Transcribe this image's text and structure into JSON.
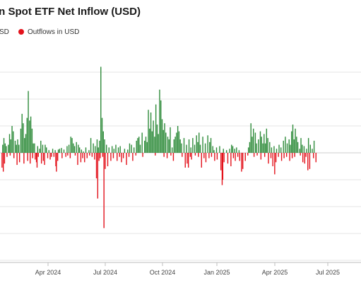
{
  "chart_data": {
    "type": "bar",
    "title": "in Spot ETF Net Inflow (USD)",
    "legend": {
      "placement": "top-left",
      "items": [
        {
          "label": "SD",
          "color": "#2e8b3a"
        },
        {
          "label": "Outflows in USD",
          "color": "#e3121b"
        }
      ]
    },
    "x_ticks": [
      "Apr 2024",
      "Jul 2024",
      "Oct 2024",
      "Jan 2025",
      "Apr 2025",
      "Jul 2025"
    ],
    "xlabel": "",
    "ylabel": "",
    "grid": true,
    "y_units": "relative (y-axis tick labels not visible)",
    "ylim": [
      -4.0,
      4.0
    ],
    "x_range_days": [
      0,
      575
    ],
    "inflow_color": "#2e8b3a",
    "outflow_color": "#e3121b",
    "series": [
      {
        "name": "Inflows",
        "points": [
          [
            2,
            0.3
          ],
          [
            4,
            0.55
          ],
          [
            6,
            0.35
          ],
          [
            8,
            0.25
          ],
          [
            11,
            0.3
          ],
          [
            13,
            0.7
          ],
          [
            15,
            0.5
          ],
          [
            17,
            1.0
          ],
          [
            19,
            0.8
          ],
          [
            22,
            0.45
          ],
          [
            24,
            0.3
          ],
          [
            26,
            0.5
          ],
          [
            28,
            0.3
          ],
          [
            31,
            0.9
          ],
          [
            33,
            1.45
          ],
          [
            35,
            1.1
          ],
          [
            37,
            0.55
          ],
          [
            39,
            0.7
          ],
          [
            41,
            1.3
          ],
          [
            43,
            2.3
          ],
          [
            45,
            1.2
          ],
          [
            47,
            1.35
          ],
          [
            49,
            0.9
          ],
          [
            51,
            0.35
          ],
          [
            53,
            0.35
          ],
          [
            58,
            0.25
          ],
          [
            61,
            0.15
          ],
          [
            63,
            0.45
          ],
          [
            66,
            0.3
          ],
          [
            70,
            0.3
          ],
          [
            72,
            0.2
          ],
          [
            76,
            0.1
          ],
          [
            82,
            0.15
          ],
          [
            86,
            0.1
          ],
          [
            91,
            0.12
          ],
          [
            93,
            0.15
          ],
          [
            96,
            0.18
          ],
          [
            100,
            0.12
          ],
          [
            105,
            0.25
          ],
          [
            108,
            0.3
          ],
          [
            111,
            0.6
          ],
          [
            113,
            0.55
          ],
          [
            115,
            0.35
          ],
          [
            117,
            0.25
          ],
          [
            120,
            0.4
          ],
          [
            123,
            0.3
          ],
          [
            125,
            0.2
          ],
          [
            128,
            0.12
          ],
          [
            131,
            0.05
          ],
          [
            135,
            0.2
          ],
          [
            140,
            0.1
          ],
          [
            143,
            0.55
          ],
          [
            147,
            0.35
          ],
          [
            150,
            0.25
          ],
          [
            153,
            0.5
          ],
          [
            155,
            0.2
          ],
          [
            157,
            0.45
          ],
          [
            159,
            3.2
          ],
          [
            161,
            1.3
          ],
          [
            163,
            0.8
          ],
          [
            165,
            0.5
          ],
          [
            168,
            0.3
          ],
          [
            172,
            0.2
          ],
          [
            177,
            0.25
          ],
          [
            180,
            0.15
          ],
          [
            183,
            0.3
          ],
          [
            187,
            0.2
          ],
          [
            190,
            0.25
          ],
          [
            197,
            0.15
          ],
          [
            202,
            0.12
          ],
          [
            205,
            0.35
          ],
          [
            208,
            0.3
          ],
          [
            212,
            0.2
          ],
          [
            216,
            0.45
          ],
          [
            218,
            0.55
          ],
          [
            220,
            0.6
          ],
          [
            222,
            0.3
          ],
          [
            225,
            0.75
          ],
          [
            229,
            0.45
          ],
          [
            231,
            0.6
          ],
          [
            233,
            0.4
          ],
          [
            235,
            1.6
          ],
          [
            237,
            0.9
          ],
          [
            239,
            1.5
          ],
          [
            241,
            0.8
          ],
          [
            243,
            1.2
          ],
          [
            245,
            0.6
          ],
          [
            247,
            1.8
          ],
          [
            249,
            1.05
          ],
          [
            251,
            0.7
          ],
          [
            253,
            2.35
          ],
          [
            255,
            1.95
          ],
          [
            257,
            1.25
          ],
          [
            259,
            0.85
          ],
          [
            261,
            1.1
          ],
          [
            263,
            0.75
          ],
          [
            266,
            0.6
          ],
          [
            268,
            0.5
          ],
          [
            270,
            0.95
          ],
          [
            273,
            0.2
          ],
          [
            276,
            0.5
          ],
          [
            278,
            0.6
          ],
          [
            280,
            0.75
          ],
          [
            282,
            1.0
          ],
          [
            284,
            0.8
          ],
          [
            286,
            0.5
          ],
          [
            288,
            0.35
          ],
          [
            292,
            0.55
          ],
          [
            296,
            0.3
          ],
          [
            300,
            0.5
          ],
          [
            303,
            0.2
          ],
          [
            306,
            0.55
          ],
          [
            309,
            0.3
          ],
          [
            312,
            0.65
          ],
          [
            314,
            0.4
          ],
          [
            316,
            0.75
          ],
          [
            318,
            0.3
          ],
          [
            322,
            0.6
          ],
          [
            326,
            0.35
          ],
          [
            330,
            0.65
          ],
          [
            333,
            0.4
          ],
          [
            335,
            0.55
          ],
          [
            338,
            0.25
          ],
          [
            340,
            0.1
          ],
          [
            344,
            0.2
          ],
          [
            349,
            0.25
          ],
          [
            355,
            0.15
          ],
          [
            360,
            0.1
          ],
          [
            365,
            0.15
          ],
          [
            368,
            0.3
          ],
          [
            370,
            0.25
          ],
          [
            373,
            0.15
          ],
          [
            376,
            0.2
          ],
          [
            380,
            0.1
          ],
          [
            395,
            0.2
          ],
          [
            397,
            0.4
          ],
          [
            399,
            1.1
          ],
          [
            401,
            0.6
          ],
          [
            403,
            0.9
          ],
          [
            406,
            0.75
          ],
          [
            408,
            0.35
          ],
          [
            411,
            0.5
          ],
          [
            414,
            0.8
          ],
          [
            416,
            0.6
          ],
          [
            418,
            0.35
          ],
          [
            420,
            0.7
          ],
          [
            422,
            0.35
          ],
          [
            424,
            0.9
          ],
          [
            426,
            0.55
          ],
          [
            429,
            0.4
          ],
          [
            432,
            0.2
          ],
          [
            436,
            0.25
          ],
          [
            440,
            0.15
          ],
          [
            444,
            0.3
          ],
          [
            447,
            0.2
          ],
          [
            451,
            0.45
          ],
          [
            454,
            0.6
          ],
          [
            457,
            0.35
          ],
          [
            460,
            0.5
          ],
          [
            462,
            0.3
          ],
          [
            464,
            0.8
          ],
          [
            466,
            1.05
          ],
          [
            468,
            0.5
          ],
          [
            470,
            0.9
          ],
          [
            472,
            0.6
          ],
          [
            474,
            0.4
          ],
          [
            477,
            0.15
          ],
          [
            479,
            0.55
          ],
          [
            481,
            0.3
          ],
          [
            484,
            0.25
          ],
          [
            488,
            0.15
          ],
          [
            491,
            0.55
          ],
          [
            494,
            0.3
          ],
          [
            497,
            0.15
          ],
          [
            500,
            0.45
          ]
        ]
      },
      {
        "name": "Outflows",
        "points": [
          [
            1,
            -0.55
          ],
          [
            3,
            -0.7
          ],
          [
            5,
            -0.4
          ],
          [
            9,
            -0.15
          ],
          [
            14,
            -0.1
          ],
          [
            20,
            -0.2
          ],
          [
            25,
            -0.45
          ],
          [
            29,
            -0.35
          ],
          [
            36,
            -0.4
          ],
          [
            42,
            -0.3
          ],
          [
            46,
            -0.4
          ],
          [
            50,
            -0.2
          ],
          [
            54,
            -0.25
          ],
          [
            56,
            -0.35
          ],
          [
            57,
            -0.55
          ],
          [
            59,
            -0.15
          ],
          [
            64,
            -0.4
          ],
          [
            67,
            -0.3
          ],
          [
            69,
            -0.45
          ],
          [
            74,
            -0.2
          ],
          [
            78,
            -0.25
          ],
          [
            80,
            -0.15
          ],
          [
            84,
            -0.15
          ],
          [
            87,
            -0.5
          ],
          [
            88,
            -0.7
          ],
          [
            90,
            -0.3
          ],
          [
            97,
            -0.2
          ],
          [
            103,
            -0.15
          ],
          [
            106,
            -0.1
          ],
          [
            110,
            -0.2
          ],
          [
            118,
            -0.1
          ],
          [
            122,
            -0.45
          ],
          [
            127,
            -0.35
          ],
          [
            130,
            -0.2
          ],
          [
            133,
            -0.35
          ],
          [
            137,
            -0.2
          ],
          [
            141,
            -0.1
          ],
          [
            145,
            -0.15
          ],
          [
            149,
            -0.25
          ],
          [
            152,
            -0.95
          ],
          [
            154,
            -1.7
          ],
          [
            156,
            -0.3
          ],
          [
            158,
            -0.2
          ],
          [
            162,
            -0.15
          ],
          [
            164,
            -2.8
          ],
          [
            166,
            -0.6
          ],
          [
            170,
            -0.5
          ],
          [
            175,
            -0.3
          ],
          [
            179,
            -0.2
          ],
          [
            185,
            -0.3
          ],
          [
            189,
            -0.15
          ],
          [
            192,
            -0.35
          ],
          [
            195,
            -0.2
          ],
          [
            200,
            -0.45
          ],
          [
            204,
            -0.15
          ],
          [
            210,
            -0.3
          ],
          [
            215,
            -0.1
          ],
          [
            226,
            -0.15
          ],
          [
            246,
            -0.1
          ],
          [
            260,
            -0.15
          ],
          [
            265,
            -0.2
          ],
          [
            271,
            -0.1
          ],
          [
            275,
            -0.3
          ],
          [
            289,
            -0.15
          ],
          [
            294,
            -0.55
          ],
          [
            297,
            -0.4
          ],
          [
            299,
            -0.55
          ],
          [
            302,
            -0.15
          ],
          [
            304,
            -0.25
          ],
          [
            310,
            -0.1
          ],
          [
            315,
            -0.15
          ],
          [
            320,
            -0.55
          ],
          [
            324,
            -0.2
          ],
          [
            327,
            -0.35
          ],
          [
            332,
            -0.2
          ],
          [
            336,
            -0.15
          ],
          [
            341,
            -0.3
          ],
          [
            345,
            -0.25
          ],
          [
            351,
            -0.65
          ],
          [
            353,
            -1.2
          ],
          [
            354,
            -1.0
          ],
          [
            356,
            -0.35
          ],
          [
            362,
            -0.4
          ],
          [
            367,
            -0.5
          ],
          [
            371,
            -0.2
          ],
          [
            374,
            -0.3
          ],
          [
            378,
            -0.15
          ],
          [
            381,
            -0.3
          ],
          [
            384,
            -0.7
          ],
          [
            386,
            -0.6
          ],
          [
            390,
            -0.3
          ],
          [
            394,
            -0.1
          ],
          [
            404,
            -0.15
          ],
          [
            409,
            -0.1
          ],
          [
            415,
            -0.25
          ],
          [
            421,
            -0.15
          ],
          [
            427,
            -0.4
          ],
          [
            431,
            -0.2
          ],
          [
            434,
            -0.5
          ],
          [
            437,
            -0.8
          ],
          [
            439,
            -0.35
          ],
          [
            443,
            -0.15
          ],
          [
            448,
            -0.3
          ],
          [
            452,
            -0.2
          ],
          [
            456,
            -0.15
          ],
          [
            461,
            -0.3
          ],
          [
            465,
            -0.2
          ],
          [
            469,
            -0.15
          ],
          [
            478,
            -0.1
          ],
          [
            482,
            -0.35
          ],
          [
            485,
            -0.4
          ],
          [
            487,
            -0.15
          ],
          [
            490,
            -0.65
          ],
          [
            493,
            -0.6
          ],
          [
            499,
            -0.2
          ],
          [
            503,
            -0.35
          ]
        ]
      }
    ]
  }
}
